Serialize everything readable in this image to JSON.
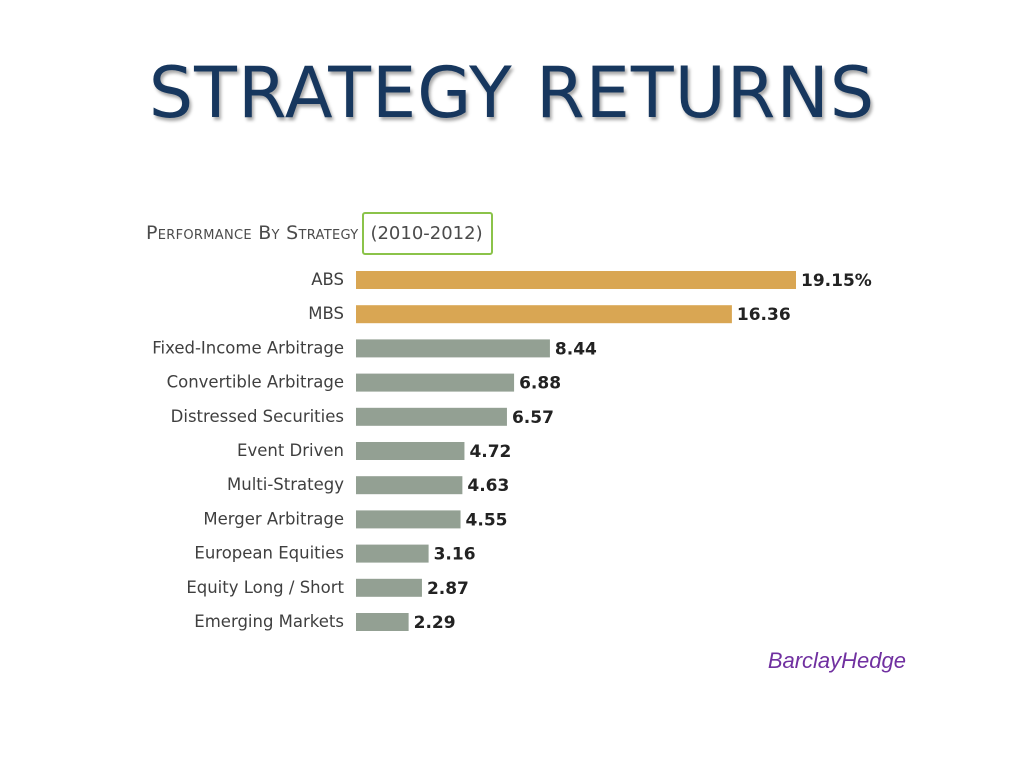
{
  "slide": {
    "title": "STRATEGY RETURNS",
    "source": "BarclayHedge"
  },
  "colors": {
    "title": "#17375e",
    "highlight_bar": "#d9a653",
    "default_bar": "#93a093",
    "period_box_border": "#8bc34a",
    "source_text": "#7030a0"
  },
  "chart_data": {
    "type": "bar",
    "orientation": "horizontal",
    "title": "Performance By Strategy",
    "period": "(2010-2012)",
    "categories": [
      "ABS",
      "MBS",
      "Fixed-Income Arbitrage",
      "Convertible Arbitrage",
      "Distressed Securities",
      "Event Driven",
      "Multi-Strategy",
      "Merger Arbitrage",
      "European Equities",
      "Equity Long / Short",
      "Emerging Markets"
    ],
    "values": [
      19.15,
      16.36,
      8.44,
      6.88,
      6.57,
      4.72,
      4.63,
      4.55,
      3.16,
      2.87,
      2.29
    ],
    "value_labels": [
      "19.15%",
      "16.36",
      "8.44",
      "6.88",
      "6.57",
      "4.72",
      "4.63",
      "4.55",
      "3.16",
      "2.87",
      "2.29"
    ],
    "highlighted": [
      "ABS",
      "MBS"
    ],
    "xlim": [
      0,
      19.15
    ],
    "xlabel": "",
    "ylabel": "",
    "grid": false,
    "legend": "none"
  }
}
